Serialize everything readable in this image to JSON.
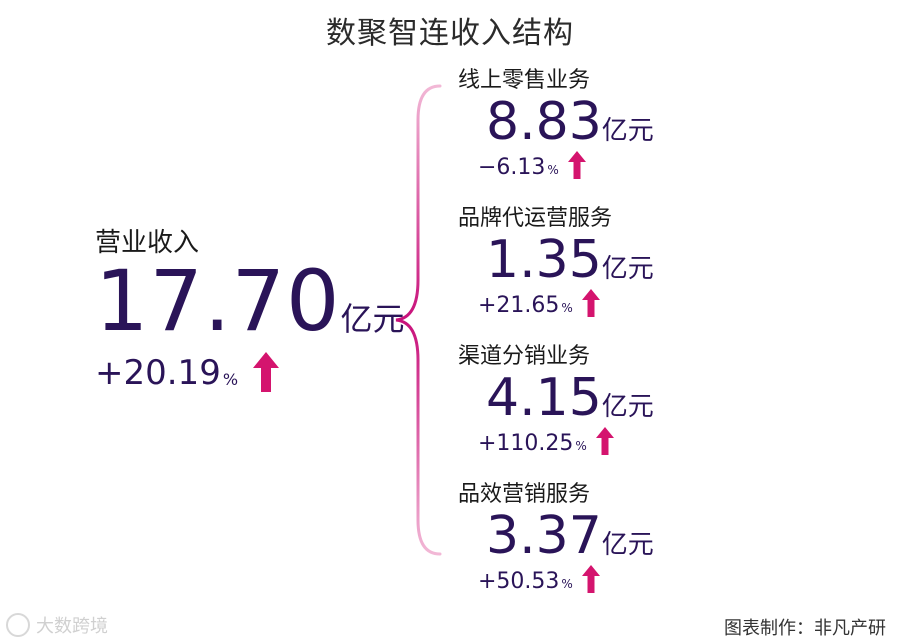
{
  "title": "数聚智连收入结构",
  "total": {
    "label": "营业收入",
    "value": "17.70",
    "unit": "亿元",
    "change": "+20.19",
    "change_unit": "%"
  },
  "segments": [
    {
      "label": "线上零售业务",
      "value": "8.83",
      "unit": "亿元",
      "change": "−6.13",
      "change_unit": "%"
    },
    {
      "label": "品牌代运营服务",
      "value": "1.35",
      "unit": "亿元",
      "change": "+21.65",
      "change_unit": "%"
    },
    {
      "label": "渠道分销业务",
      "value": "4.15",
      "unit": "亿元",
      "change": "+110.25",
      "change_unit": "%"
    },
    {
      "label": "品效营销服务",
      "value": "3.37",
      "unit": "亿元",
      "change": "+50.53",
      "change_unit": "%"
    }
  ],
  "footer": {
    "watermark": "大数跨境",
    "credit": "图表制作：非凡产研"
  },
  "colors": {
    "value_text": "#2a1458",
    "arrow": "#d4146e",
    "brace": "#e06aa8"
  },
  "icons": {
    "up_arrow": "up-arrow-icon",
    "brace": "curly-brace"
  }
}
